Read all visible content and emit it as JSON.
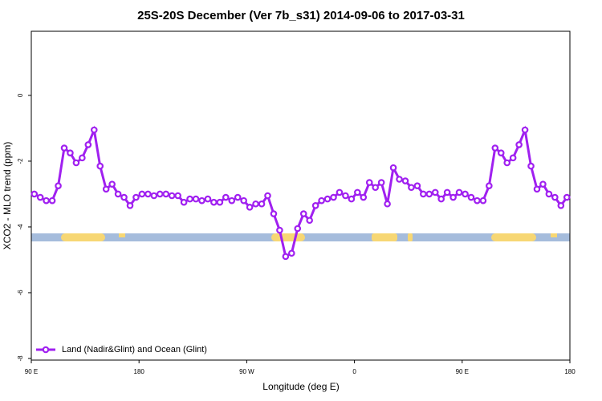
{
  "chart_data": {
    "type": "line",
    "title": "25S-20S December (Ver 7b_s31)   2014-09-06 to 2017-03-31",
    "x_label": "Longitude (deg E)",
    "y_label": "XCO2 - MLO trend (ppm)",
    "xlim": [
      90,
      540
    ],
    "ylim": [
      -8.05,
      1.95
    ],
    "xticks": [
      {
        "value": 90,
        "label": "90 E"
      },
      180,
      {
        "value": 270,
        "label": "90 W"
      },
      {
        "value": 360,
        "label": "0"
      },
      {
        "value": 450,
        "label": "90 E"
      },
      {
        "value": 540,
        "label": "180"
      }
    ],
    "yticks": [
      0,
      -2,
      -4,
      -6,
      -8
    ],
    "legend": "bottom-left",
    "x": [
      92.5,
      97.5,
      102.5,
      107.5,
      112.5,
      117.5,
      122.5,
      127.5,
      132.5,
      137.5,
      142.5,
      147.5,
      152.5,
      157.5,
      162.5,
      167.5,
      172.5,
      177.5,
      182.5,
      187.5,
      192.5,
      197.5,
      202.5,
      207.5,
      212.5,
      217.5,
      222.5,
      227.5,
      232.5,
      237.5,
      242.5,
      247.5,
      252.5,
      257.5,
      262.5,
      267.5,
      272.5,
      277.5,
      282.5,
      287.5,
      292.5,
      297.5,
      302.5,
      307.5,
      312.5,
      317.5,
      322.5,
      327.5,
      332.5,
      337.5,
      342.5,
      347.5,
      352.5,
      357.5,
      362.5,
      367.5,
      372.5,
      377.5,
      382.5,
      387.5,
      392.5,
      397.5,
      402.5,
      407.5,
      412.5,
      417.5,
      422.5,
      427.5,
      432.5,
      437.5,
      442.5,
      447.5,
      452.5,
      457.5,
      462.5,
      467.5,
      472.5,
      477.5,
      482.5,
      487.5,
      492.5,
      497.5,
      502.5,
      507.5,
      512.5,
      517.5,
      522.5,
      527.5,
      532.5,
      537.5
    ],
    "series": [
      {
        "name": "Land (Nadir&Glint) and Ocean (Glint)",
        "color": "#a020f0",
        "values": [
          -3.0,
          -3.1,
          -3.2,
          -3.2,
          -2.75,
          -1.6,
          -1.75,
          -2.05,
          -1.9,
          -1.5,
          -1.05,
          -2.15,
          -2.85,
          -2.7,
          -3.0,
          -3.1,
          -3.35,
          -3.1,
          -3.0,
          -3.0,
          -3.05,
          -3.0,
          -3.0,
          -3.05,
          -3.05,
          -3.25,
          -3.15,
          -3.15,
          -3.2,
          -3.15,
          -3.25,
          -3.25,
          -3.1,
          -3.2,
          -3.1,
          -3.2,
          -3.4,
          -3.3,
          -3.3,
          -3.05,
          -3.6,
          -4.1,
          -4.9,
          -4.8,
          -4.05,
          -3.6,
          -3.8,
          -3.35,
          -3.2,
          -3.15,
          -3.1,
          -2.95,
          -3.05,
          -3.15,
          -2.95,
          -3.1,
          -2.65,
          -2.8,
          -2.65,
          -3.3,
          -2.2,
          -2.55,
          -2.6,
          -2.8,
          -2.75,
          -3.0,
          -3.0,
          -2.95,
          -3.15,
          -2.95,
          -3.1,
          -2.95,
          -3.0,
          -3.1,
          -3.2,
          -3.2,
          -2.75,
          -1.6,
          -1.75,
          -2.05,
          -1.9,
          -1.5,
          -1.05,
          -2.15,
          -2.85,
          -2.7,
          -3.0,
          -3.1,
          -3.35,
          -3.1
        ]
      }
    ]
  }
}
